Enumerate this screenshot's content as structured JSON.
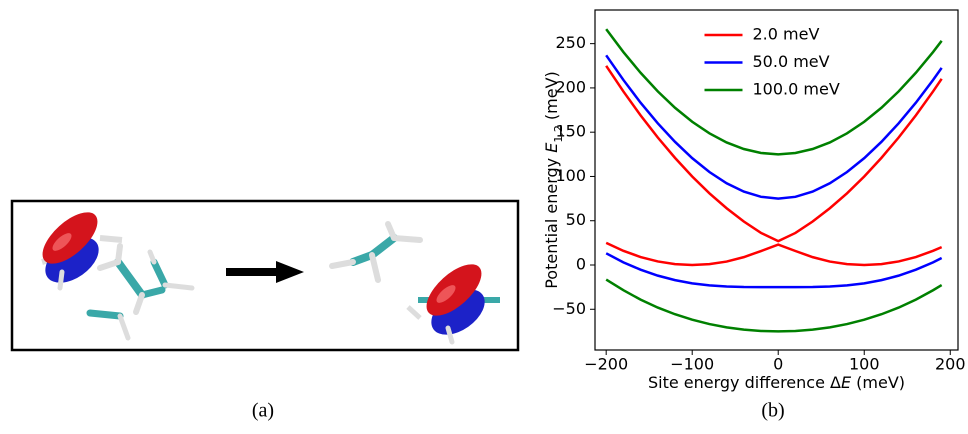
{
  "panel_a": {
    "caption": "(a)"
  },
  "panel_b": {
    "caption": "(b)"
  },
  "chart_data": {
    "type": "line",
    "xlabel": [
      "Site energy difference Δ",
      "E",
      " (meV)"
    ],
    "ylabel": [
      "Potential energy ",
      "E",
      "1,2",
      " (meV)"
    ],
    "x": [
      -200,
      -180,
      -160,
      -140,
      -120,
      -100,
      -80,
      -60,
      -40,
      -20,
      0,
      20,
      40,
      60,
      80,
      100,
      120,
      140,
      160,
      180,
      190
    ],
    "series": [
      {
        "name": "2.0 meV",
        "color": "#ff0000",
        "upper": [
          225.0,
          196.0,
          169.0,
          144.0,
          121.0,
          100.0,
          81.0,
          64.1,
          49.1,
          36.2,
          27.0,
          36.2,
          49.1,
          64.1,
          81.0,
          100.0,
          121.0,
          144.0,
          169.0,
          196.0,
          210.3
        ],
        "lower": [
          25.0,
          16.0,
          9.0,
          4.0,
          1.0,
          0.0,
          1.0,
          3.9,
          8.9,
          15.8,
          23.0,
          15.8,
          8.9,
          3.9,
          1.0,
          0.0,
          1.0,
          4.0,
          9.0,
          16.0,
          20.2
        ]
      },
      {
        "name": "50.0 meV",
        "color": "#0000ff",
        "upper": [
          236.8,
          209.0,
          183.3,
          160.0,
          139.1,
          120.7,
          105.0,
          92.3,
          82.9,
          77.0,
          75.0,
          77.0,
          82.9,
          92.3,
          105.0,
          120.7,
          139.1,
          160.0,
          183.3,
          209.0,
          222.6
        ],
        "lower": [
          13.2,
          3.0,
          -5.3,
          -12.0,
          -17.1,
          -20.7,
          -23.0,
          -24.3,
          -24.9,
          -25.0,
          -25.0,
          -25.0,
          -24.9,
          -24.3,
          -23.0,
          -20.7,
          -17.1,
          -12.0,
          -5.3,
          3.0,
          7.9
        ]
      },
      {
        "name": "100.0 meV",
        "color": "#008000",
        "upper": [
          266.4,
          240.5,
          217.1,
          196.1,
          177.6,
          161.8,
          148.7,
          138.4,
          131.0,
          126.5,
          125.0,
          126.5,
          131.0,
          138.4,
          148.7,
          161.8,
          177.6,
          196.1,
          217.1,
          240.5,
          253.2
        ],
        "lower": [
          -16.4,
          -28.5,
          -39.1,
          -48.1,
          -55.6,
          -61.8,
          -66.7,
          -70.4,
          -73.0,
          -74.5,
          -75.0,
          -74.5,
          -73.0,
          -70.4,
          -66.7,
          -61.8,
          -55.6,
          -48.1,
          -39.1,
          -28.5,
          -22.7
        ]
      }
    ],
    "xlim": [
      -213,
      209
    ],
    "xticks": [
      {
        "value": -200,
        "label": "−200"
      },
      {
        "value": -100,
        "label": "−100"
      },
      0,
      100,
      200
    ],
    "ylim": [
      -96,
      288
    ],
    "yticks": [
      {
        "value": -50,
        "label": "−50"
      },
      0,
      50,
      100,
      150,
      200,
      250
    ],
    "grid": false,
    "legend": "upper-center"
  }
}
